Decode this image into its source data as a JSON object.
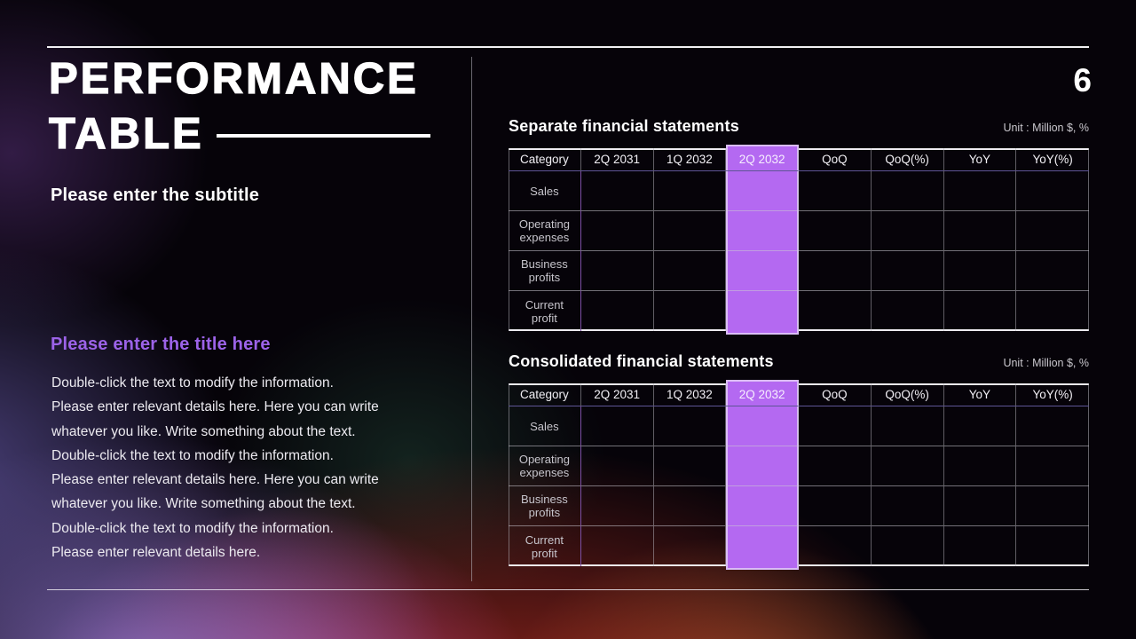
{
  "page_number": "6",
  "left_panel": {
    "title_line1": "PERFORMANCE",
    "title_line2": "TABLE",
    "subtitle": "Please enter the subtitle",
    "section_title": "Please enter the title here",
    "body_lines": [
      "Double-click the text to modify the information.",
      "Please enter relevant details here. Here you can write",
      "whatever you like. Write something about the text.",
      "Double-click the text to modify the information.",
      "Please enter relevant details here. Here you can write",
      "whatever you like. Write something about the text.",
      "Double-click the text to modify the information.",
      "Please enter relevant details here."
    ]
  },
  "sections": [
    {
      "title": "Separate financial statements",
      "unit": "Unit : Million $, %"
    },
    {
      "title": "Consolidated financial statements",
      "unit": "Unit : Million $, %"
    }
  ],
  "table_structure": {
    "columns": [
      "Category",
      "2Q 2031",
      "1Q 2032",
      "2Q 2032",
      "QoQ",
      "QoQ(%)",
      "YoY",
      "YoY(%)"
    ],
    "highlight_column": "2Q 2032",
    "highlight_index": 3,
    "row_labels": [
      "Sales",
      "Operating expenses",
      "Business profits",
      "Current profit"
    ],
    "cell_values": [
      [
        "",
        "",
        "",
        "",
        "",
        "",
        ""
      ],
      [
        "",
        "",
        "",
        "",
        "",
        "",
        ""
      ],
      [
        "",
        "",
        "",
        "",
        "",
        "",
        ""
      ],
      [
        "",
        "",
        "",
        "",
        "",
        "",
        ""
      ]
    ]
  },
  "colors": {
    "highlight_fill": "#b469f1",
    "highlight_border": "#dabdf6",
    "accent_title": "#9c63e8",
    "category_divider": "#7c4fa4",
    "header_underline": "#5e5595"
  }
}
